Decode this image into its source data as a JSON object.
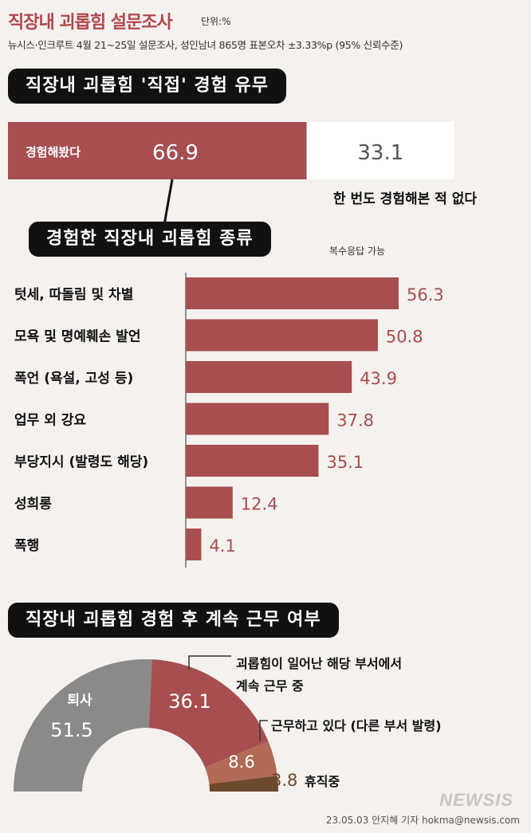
{
  "header": {
    "title": "직장내 괴롭힘 설문조사",
    "unit": "단위:%",
    "source": "뉴시스·인크루트 4월 21~25일 설문조사, 성인남녀 865명 표본오차 ±3.33%p (95% 신뢰수준)"
  },
  "colors": {
    "accent": "#a64e50",
    "gray": "#8a8a8a",
    "light_brown": "#b26a55",
    "dark_brown": "#6e4a2c",
    "background": "#f4f1ee"
  },
  "chart_data": [
    {
      "type": "bar",
      "orientation": "horizontal-stacked",
      "title": "직장내 괴롭힘 '직접' 경험 유무",
      "categories": [
        "경험해봤다",
        "한 번도 경험해본 적 없다"
      ],
      "values": [
        66.9,
        33.1
      ],
      "value_labels": [
        "66.9",
        "33.1"
      ]
    },
    {
      "type": "bar",
      "orientation": "horizontal",
      "title": "경험한 직장내 괴롭힘 종류",
      "note": "복수응답 가능",
      "categories": [
        "텃세, 따돌림 및 차별",
        "모욕 및 명예훼손 발언",
        "폭언 (욕설, 고성 등)",
        "업무 외 강요",
        "부당지시 (발령도 해당)",
        "성희롱",
        "폭행"
      ],
      "values": [
        56.3,
        50.8,
        43.9,
        37.8,
        35.1,
        12.4,
        4.1
      ],
      "value_labels": [
        "56.3",
        "50.8",
        "43.9",
        "37.8",
        "35.1",
        "12.4",
        "4.1"
      ],
      "xlim": [
        0,
        60
      ]
    },
    {
      "type": "pie",
      "subtype": "half-donut",
      "title": "직장내 괴롭힘 경험 후 계속 근무 여부",
      "categories": [
        "퇴사",
        "괴롭힘이 일어난 해당 부서에서 계속 근무 중",
        "근무하고 있다 (다른 부서 발령)",
        "휴직중"
      ],
      "values": [
        51.5,
        36.1,
        8.6,
        3.8
      ],
      "value_labels": [
        "51.5",
        "36.1",
        "8.6",
        "3.8"
      ],
      "colors": [
        "#8a8a8a",
        "#a64e50",
        "#b26a55",
        "#6e4a2c"
      ]
    }
  ],
  "pie_labels": {
    "quit": "퇴사",
    "same_dept_line1": "괴롭힘이 일어난 해당 부서에서",
    "same_dept_line2": "계속 근무 중",
    "other_dept": "근무하고 있다 (다른 부서 발령)",
    "leave": "휴직중"
  },
  "footer": {
    "credit": "23.05.03 안지혜 기자 hokma@newsis.com",
    "watermark": "NEWSIS"
  }
}
